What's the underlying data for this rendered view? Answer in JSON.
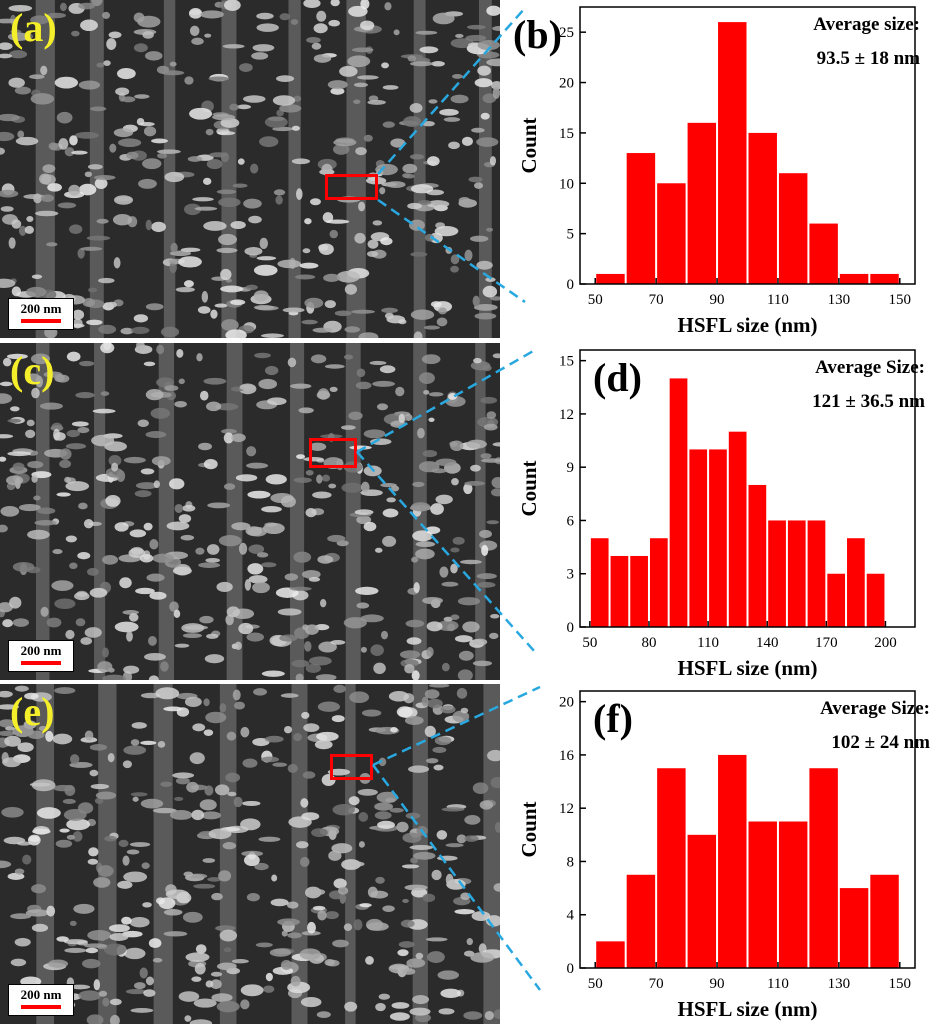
{
  "panels": [
    {
      "sem_label": "(a)",
      "scale_bar": "200 nm",
      "chart_label": "(b)",
      "annotation_title": "Average size:",
      "annotation_value": "93.5 ± 18 nm",
      "chart_data": {
        "type": "bar",
        "xlabel": "HSFL size (nm)",
        "ylabel": "Count",
        "xlim": [
          45,
          155
        ],
        "ylim": [
          0,
          27.5
        ],
        "xticks": [
          50,
          70,
          90,
          110,
          130,
          150
        ],
        "yticks": [
          0,
          5,
          10,
          15,
          20,
          25
        ],
        "bin_width": 10,
        "bin_centers": [
          55,
          65,
          75,
          85,
          95,
          105,
          115,
          125,
          135,
          145
        ],
        "values": [
          1,
          13,
          10,
          16,
          26,
          15,
          11,
          6,
          1,
          1
        ],
        "bar_color": "#ff0000"
      }
    },
    {
      "sem_label": "(c)",
      "scale_bar": "200 nm",
      "chart_label": "(d)",
      "annotation_title": "Average Size:",
      "annotation_value": "121 ± 36.5 nm",
      "chart_data": {
        "type": "bar",
        "xlabel": "HSFL size (nm)",
        "ylabel": "Count",
        "xlim": [
          45,
          215
        ],
        "ylim": [
          0,
          15.6
        ],
        "xticks": [
          50,
          80,
          110,
          140,
          170,
          200
        ],
        "yticks": [
          0,
          3,
          6,
          9,
          12,
          15
        ],
        "bin_width": 10,
        "bin_centers": [
          55,
          65,
          75,
          85,
          95,
          105,
          115,
          125,
          135,
          145,
          155,
          165,
          175,
          185,
          195
        ],
        "values": [
          5,
          4,
          4,
          5,
          14,
          10,
          10,
          11,
          8,
          6,
          6,
          6,
          3,
          5,
          3
        ],
        "bar_color": "#ff0000"
      }
    },
    {
      "sem_label": "(e)",
      "scale_bar": "200 nm",
      "chart_label": "(f)",
      "annotation_title": "Average Size:",
      "annotation_value": "102 ± 24 nm",
      "chart_data": {
        "type": "bar",
        "xlabel": "HSFL size (nm)",
        "ylabel": "Count",
        "xlim": [
          45,
          155
        ],
        "ylim": [
          0,
          20.8
        ],
        "xticks": [
          50,
          70,
          90,
          110,
          130,
          150
        ],
        "yticks": [
          0,
          4,
          8,
          12,
          16,
          20
        ],
        "bin_width": 10,
        "bin_centers": [
          55,
          65,
          75,
          85,
          95,
          105,
          115,
          125,
          135,
          145
        ],
        "values": [
          2,
          7,
          15,
          10,
          16,
          11,
          11,
          15,
          6,
          7
        ],
        "bar_color": "#ff0000"
      }
    }
  ],
  "colors": {
    "bar": "#ff0000",
    "sem_label": "#f4ef2a",
    "guide_line": "#29a8e0",
    "roi": "#ff0000"
  }
}
